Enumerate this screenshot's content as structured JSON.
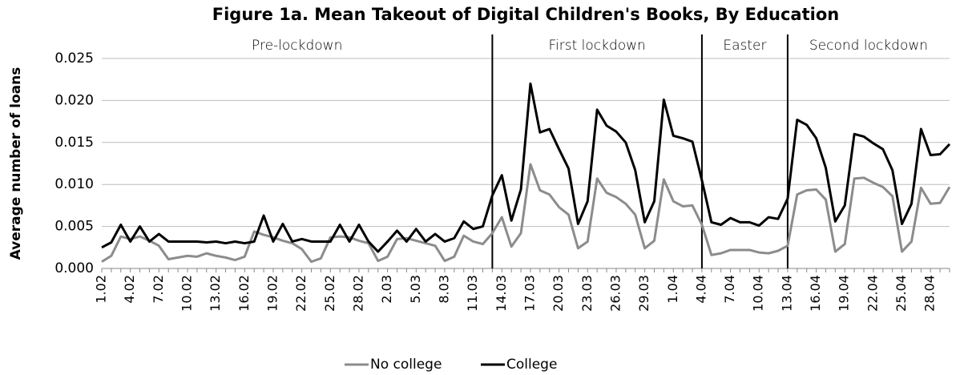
{
  "chart_data": {
    "type": "line",
    "title": "Figure 1a. Mean Takeout of Digital Children's Books, By Education",
    "y_label": "Average number of loans",
    "categories": [
      "1.02",
      null,
      null,
      "4.02",
      null,
      null,
      "7.02",
      null,
      null,
      "10.02",
      null,
      null,
      "13.02",
      null,
      null,
      "16.02",
      null,
      null,
      "19.02",
      null,
      null,
      "22.02",
      null,
      null,
      "25.02",
      null,
      null,
      "28.02",
      null,
      null,
      "2.03",
      null,
      null,
      "5.03",
      null,
      null,
      "8.03",
      null,
      null,
      "11.03",
      null,
      null,
      "14.03",
      null,
      null,
      "17.03",
      null,
      null,
      "20.03",
      null,
      null,
      "23.03",
      null,
      null,
      "26.03",
      null,
      null,
      "29.03",
      null,
      null,
      "1.04",
      null,
      null,
      "4.04",
      null,
      null,
      "7.04",
      null,
      null,
      "10.04",
      null,
      null,
      "13.04",
      null,
      null,
      "16.04",
      null,
      null,
      "19.04",
      null,
      null,
      "22.04",
      null,
      null,
      "25.04",
      null,
      null,
      "28.04",
      null,
      null
    ],
    "series": [
      {
        "name": "No college",
        "color": "#8c8c8c",
        "values": [
          0.0008,
          0.0015,
          0.0038,
          0.0035,
          0.0038,
          0.0033,
          0.0027,
          0.0011,
          0.0013,
          0.0015,
          0.0014,
          0.0018,
          0.0015,
          0.0013,
          0.001,
          0.0014,
          0.0044,
          0.004,
          0.0037,
          0.0033,
          0.003,
          0.0023,
          0.0008,
          0.0012,
          0.0037,
          0.0038,
          0.0037,
          0.0033,
          0.003,
          0.0009,
          0.0014,
          0.0035,
          0.0036,
          0.0033,
          0.003,
          0.0027,
          0.0009,
          0.0014,
          0.0039,
          0.0032,
          0.0029,
          0.0042,
          0.0061,
          0.0026,
          0.0042,
          0.0124,
          0.0093,
          0.0088,
          0.0073,
          0.0064,
          0.0024,
          0.0032,
          0.0107,
          0.009,
          0.0085,
          0.0077,
          0.0064,
          0.0024,
          0.0033,
          0.0106,
          0.008,
          0.0074,
          0.0075,
          0.0052,
          0.0016,
          0.0018,
          0.0022,
          0.0022,
          0.0022,
          0.0019,
          0.0018,
          0.0021,
          0.0027,
          0.0088,
          0.0093,
          0.0094,
          0.0082,
          0.002,
          0.0029,
          0.0107,
          0.0108,
          0.0102,
          0.0097,
          0.0086,
          0.002,
          0.0032,
          0.0096,
          0.0077,
          0.0078,
          0.0097
        ]
      },
      {
        "name": "College",
        "color": "#000000",
        "values": [
          0.0025,
          0.0031,
          0.0052,
          0.0032,
          0.005,
          0.0032,
          0.0041,
          0.0032,
          0.0032,
          0.0032,
          0.0032,
          0.0031,
          0.0032,
          0.003,
          0.0032,
          0.003,
          0.0032,
          0.0063,
          0.0032,
          0.0053,
          0.0032,
          0.0035,
          0.0032,
          0.0032,
          0.0032,
          0.0052,
          0.0032,
          0.0052,
          0.0032,
          0.002,
          0.0032,
          0.0045,
          0.0032,
          0.0047,
          0.0032,
          0.0041,
          0.0032,
          0.0036,
          0.0056,
          0.0047,
          0.005,
          0.0087,
          0.0111,
          0.0057,
          0.0094,
          0.022,
          0.0162,
          0.0166,
          0.0142,
          0.0119,
          0.0053,
          0.008,
          0.0189,
          0.017,
          0.0163,
          0.015,
          0.0117,
          0.0055,
          0.008,
          0.0201,
          0.0158,
          0.0155,
          0.0151,
          0.0105,
          0.0055,
          0.0052,
          0.006,
          0.0055,
          0.0055,
          0.0051,
          0.0061,
          0.0059,
          0.0083,
          0.0177,
          0.0171,
          0.0155,
          0.012,
          0.0056,
          0.0075,
          0.016,
          0.0157,
          0.0149,
          0.0142,
          0.0117,
          0.0053,
          0.0077,
          0.0166,
          0.0135,
          0.0136,
          0.0148
        ]
      }
    ],
    "periods": [
      {
        "label": "Pre-lockdown",
        "start": 0
      },
      {
        "label": "First lockdown",
        "start": 41
      },
      {
        "label": "Easter",
        "start": 63
      },
      {
        "label": "Second lockdown",
        "start": 72
      }
    ],
    "ylim": [
      0,
      0.025
    ],
    "yticks": [
      {
        "value": 0,
        "label": "0.000"
      },
      {
        "value": 0.005,
        "label": "0.005"
      },
      {
        "value": 0.01,
        "label": "0.010"
      },
      {
        "value": 0.015,
        "label": "0.015"
      },
      {
        "value": 0.02,
        "label": "0.020"
      },
      {
        "value": 0.025,
        "label": "0.025"
      }
    ],
    "grid": true,
    "legend": "bottom"
  }
}
